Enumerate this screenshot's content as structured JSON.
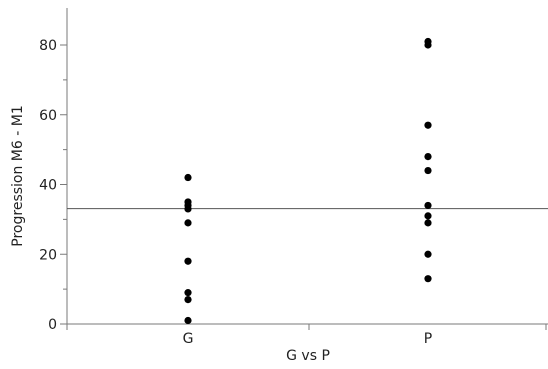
{
  "chart_data": {
    "type": "scatter",
    "title": "",
    "xlabel": "G vs P",
    "ylabel": "Progression M6 - M1",
    "categories": [
      "G",
      "P"
    ],
    "ylim": [
      0,
      88
    ],
    "yticks": [
      0,
      20,
      40,
      60,
      80
    ],
    "grid": false,
    "reference_line": {
      "value": 33.1,
      "color": "#555555"
    },
    "series": [
      {
        "category": "G",
        "values": [
          1,
          7,
          9,
          18,
          29,
          33,
          34,
          35,
          42
        ]
      },
      {
        "category": "P",
        "values": [
          13,
          20,
          29,
          31,
          34,
          44,
          48,
          57,
          80,
          81
        ]
      }
    ],
    "colors": {
      "point": "#000000",
      "axis": "#7a7a7a",
      "text": "#222222"
    }
  }
}
